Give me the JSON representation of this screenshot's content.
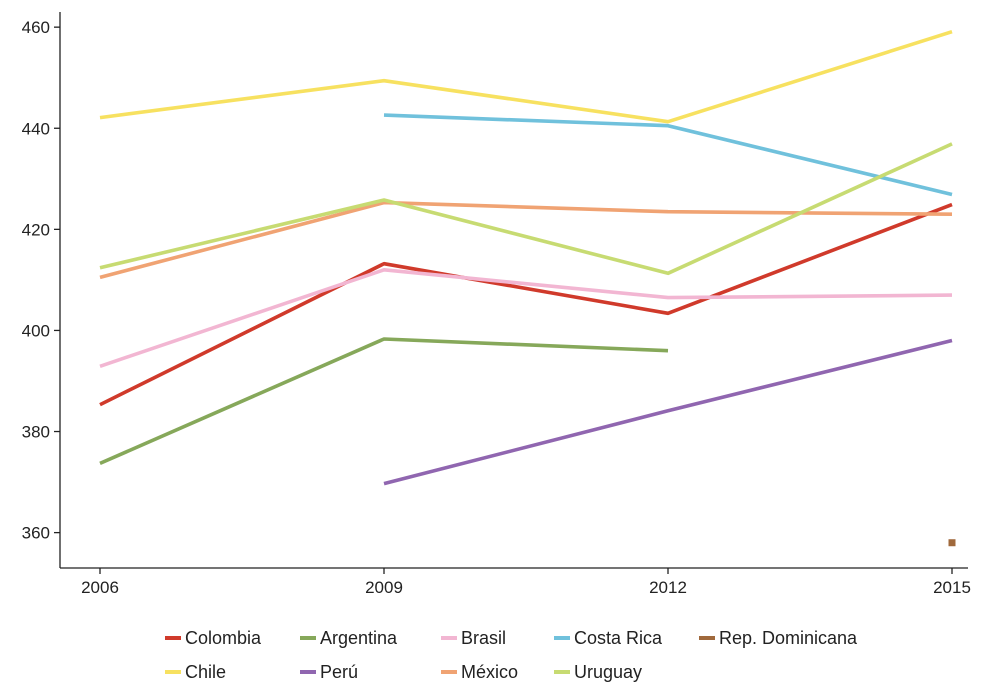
{
  "chart_data": {
    "type": "line",
    "title": "",
    "xlabel": "",
    "ylabel": "",
    "x": [
      "2006",
      "2009",
      "2012",
      "2015"
    ],
    "ylim": [
      353,
      463
    ],
    "yticks": [
      360,
      380,
      400,
      420,
      440,
      460
    ],
    "grid": false,
    "legend_position": "bottom",
    "series": [
      {
        "name": "Colombia",
        "color": "#d03a2b",
        "values": [
          385.3,
          413.2,
          403.4,
          424.9
        ]
      },
      {
        "name": "Argentina",
        "color": "#86a85a",
        "values": [
          373.7,
          398.3,
          396.0,
          null
        ]
      },
      {
        "name": "Brasil",
        "color": "#f2b6d2",
        "values": [
          392.9,
          412.0,
          406.5,
          407.0
        ]
      },
      {
        "name": "Costa Rica",
        "color": "#70c1dc",
        "values": [
          null,
          442.6,
          440.5,
          426.9
        ]
      },
      {
        "name": "Rep. Dominicana",
        "color": "#a0693c",
        "values": [
          null,
          null,
          null,
          358.0
        ]
      },
      {
        "name": "Chile",
        "color": "#f7e160",
        "values": [
          442.1,
          449.4,
          441.3,
          459.1
        ]
      },
      {
        "name": "Perú",
        "color": "#9066b0",
        "values": [
          null,
          369.7,
          384.1,
          398.0
        ]
      },
      {
        "name": "México",
        "color": "#f0a373",
        "values": [
          410.5,
          425.3,
          423.5,
          423.0
        ]
      },
      {
        "name": "Uruguay",
        "color": "#c7db72",
        "values": [
          412.4,
          425.8,
          411.3,
          436.9
        ]
      }
    ]
  }
}
